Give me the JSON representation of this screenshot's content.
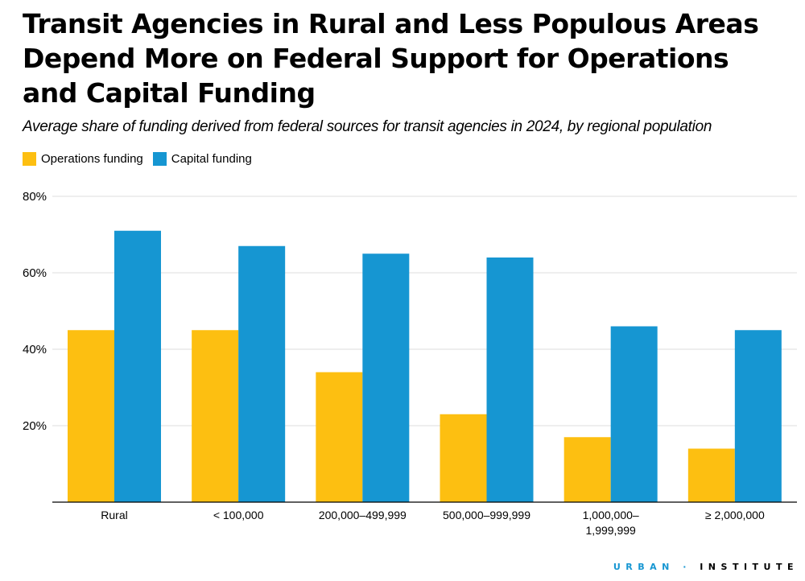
{
  "chart_data": {
    "type": "bar",
    "title": "Transit Agencies in Rural and Less Populous Areas Depend More on Federal Support for Operations and Capital Funding",
    "subtitle": "Average share of funding derived from federal sources for transit agencies in 2024, by regional population",
    "categories": [
      "Rural",
      "< 100,000",
      "200,000–499,999",
      "500,000–999,999",
      "1,000,000–\n1,999,999",
      "≥ 2,000,000"
    ],
    "series": [
      {
        "name": "Operations funding",
        "color": "#fdbf11",
        "values": [
          45,
          45,
          34,
          23,
          17,
          14
        ]
      },
      {
        "name": "Capital funding",
        "color": "#1696d2",
        "values": [
          71,
          67,
          65,
          64,
          46,
          45
        ]
      }
    ],
    "ylim": [
      0,
      80
    ],
    "yticks": [
      20,
      40,
      60,
      80
    ],
    "ytick_labels": [
      "20%",
      "40%",
      "60%",
      "80%"
    ],
    "grid": true,
    "legend": "top-left"
  },
  "logo": {
    "part1": "URBAN",
    "sep": "·",
    "part2": "INSTITUTE",
    "color1": "#1696d2"
  }
}
